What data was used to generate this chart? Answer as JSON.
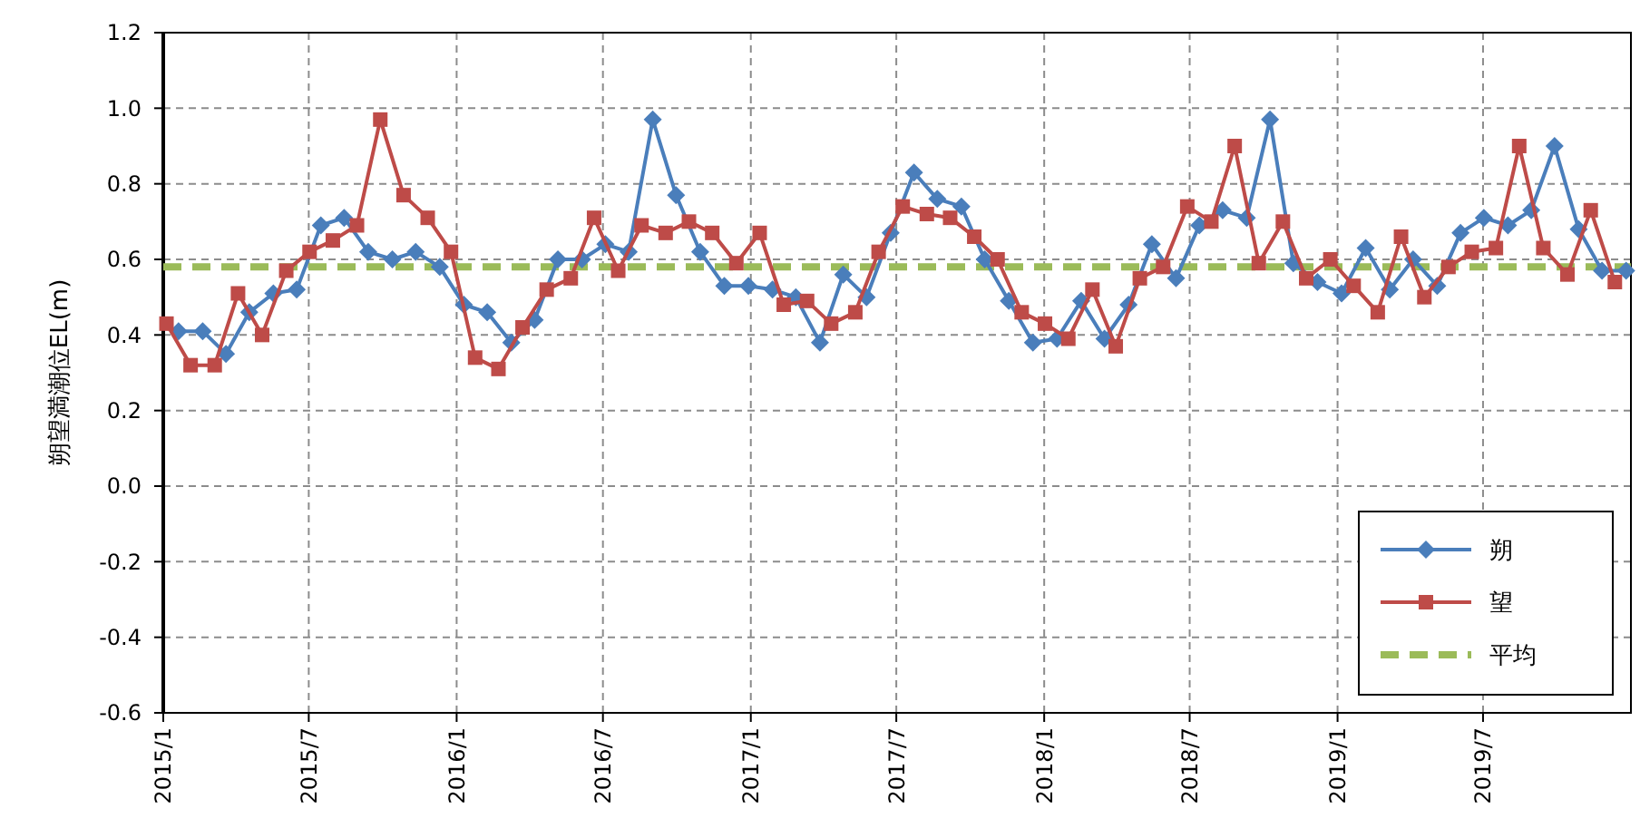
{
  "chart_data": {
    "type": "line",
    "ylabel": "朔望満潮位EL(m)",
    "xlim": [
      "2015-01-01",
      "2020-01-01"
    ],
    "xticks": [
      {
        "value": "2015-01",
        "label": "2015/1"
      },
      {
        "value": "2015-07",
        "label": "2015/7"
      },
      {
        "value": "2016-01",
        "label": "2016/1"
      },
      {
        "value": "2016-07",
        "label": "2016/7"
      },
      {
        "value": "2017-01",
        "label": "2017/1"
      },
      {
        "value": "2017-07",
        "label": "2017/7"
      },
      {
        "value": "2018-01",
        "label": "2018/1"
      },
      {
        "value": "2018-07",
        "label": "2018/7"
      },
      {
        "value": "2019-01",
        "label": "2019/1"
      },
      {
        "value": "2019-07",
        "label": "2019/7"
      }
    ],
    "ylim": [
      -0.6,
      1.2
    ],
    "yticks": [
      {
        "value": -0.6,
        "label": "-0.6"
      },
      {
        "value": -0.4,
        "label": "-0.4"
      },
      {
        "value": -0.2,
        "label": "-0.2"
      },
      {
        "value": 0,
        "label": "0.0"
      },
      {
        "value": 0.2,
        "label": "0.2"
      },
      {
        "value": 0.4,
        "label": "0.4"
      },
      {
        "value": 0.6,
        "label": "0.6"
      },
      {
        "value": 0.8,
        "label": "0.8"
      },
      {
        "value": 1,
        "label": "1.0"
      },
      {
        "value": 1.2,
        "label": "1.2"
      }
    ],
    "grid": true,
    "legend": "bottom right",
    "series": [
      {
        "name": "朔",
        "color": "#4a7ebb",
        "marker": "diamond",
        "x": [
          "2015-01-20",
          "2015-02-19",
          "2015-03-20",
          "2015-04-18",
          "2015-05-18",
          "2015-06-16",
          "2015-07-16",
          "2015-08-14",
          "2015-09-13",
          "2015-10-13",
          "2015-11-11",
          "2015-12-11",
          "2016-01-10",
          "2016-02-08",
          "2016-03-09",
          "2016-04-07",
          "2016-05-06",
          "2016-06-05",
          "2016-07-04",
          "2016-08-02",
          "2016-09-01",
          "2016-09-30",
          "2016-10-30",
          "2016-11-29",
          "2016-12-29",
          "2017-01-28",
          "2017-02-26",
          "2017-03-28",
          "2017-04-26",
          "2017-05-25",
          "2017-06-24",
          "2017-07-23",
          "2017-08-21",
          "2017-09-20",
          "2017-10-19",
          "2017-11-18",
          "2017-12-18",
          "2018-01-17",
          "2018-02-16",
          "2018-03-17",
          "2018-04-16",
          "2018-05-15",
          "2018-06-14",
          "2018-07-13",
          "2018-08-11",
          "2018-09-10",
          "2018-10-09",
          "2018-11-07",
          "2018-12-07",
          "2019-01-06",
          "2019-02-05",
          "2019-03-07",
          "2019-04-05",
          "2019-05-05",
          "2019-06-03",
          "2019-07-02",
          "2019-08-01",
          "2019-08-30",
          "2019-09-28",
          "2019-10-28",
          "2019-11-26",
          "2019-12-26"
        ],
        "values": [
          0.41,
          0.41,
          0.35,
          0.46,
          0.51,
          0.52,
          0.69,
          0.71,
          0.62,
          0.6,
          0.62,
          0.58,
          0.48,
          0.46,
          0.38,
          0.44,
          0.6,
          0.6,
          0.64,
          0.62,
          0.97,
          0.77,
          0.62,
          0.53,
          0.53,
          0.52,
          0.5,
          0.38,
          0.56,
          0.5,
          0.67,
          0.83,
          0.76,
          0.74,
          0.6,
          0.49,
          0.38,
          0.39,
          0.49,
          0.39,
          0.48,
          0.64,
          0.55,
          0.69,
          0.73,
          0.71,
          0.97,
          0.59,
          0.54,
          0.51,
          0.63,
          0.52,
          0.6,
          0.53,
          0.67,
          0.71,
          0.69,
          0.73,
          0.9,
          0.68,
          0.57,
          0.57
        ]
      },
      {
        "name": "望",
        "color": "#be4b48",
        "marker": "square",
        "x": [
          "2015-01-05",
          "2015-02-04",
          "2015-03-06",
          "2015-04-04",
          "2015-05-04",
          "2015-06-03",
          "2015-07-02",
          "2015-07-31",
          "2015-08-30",
          "2015-09-28",
          "2015-10-27",
          "2015-11-26",
          "2015-12-25",
          "2016-01-24",
          "2016-02-22",
          "2016-03-23",
          "2016-04-22",
          "2016-05-22",
          "2016-06-20",
          "2016-07-20",
          "2016-08-18",
          "2016-09-17",
          "2016-10-16",
          "2016-11-14",
          "2016-12-14",
          "2017-01-12",
          "2017-02-11",
          "2017-03-12",
          "2017-04-11",
          "2017-05-11",
          "2017-06-09",
          "2017-07-09",
          "2017-08-08",
          "2017-09-06",
          "2017-10-06",
          "2017-11-04",
          "2017-12-04",
          "2018-01-02",
          "2018-01-31",
          "2018-03-02",
          "2018-03-31",
          "2018-04-30",
          "2018-05-29",
          "2018-06-28",
          "2018-07-28",
          "2018-08-26",
          "2018-09-25",
          "2018-10-25",
          "2018-11-23",
          "2018-12-23",
          "2019-01-21",
          "2019-02-20",
          "2019-03-21",
          "2019-04-19",
          "2019-05-19",
          "2019-06-17",
          "2019-07-17",
          "2019-08-15",
          "2019-09-14",
          "2019-10-14",
          "2019-11-12",
          "2019-12-12"
        ],
        "values": [
          0.43,
          0.32,
          0.32,
          0.51,
          0.4,
          0.57,
          0.62,
          0.65,
          0.69,
          0.97,
          0.77,
          0.71,
          0.62,
          0.34,
          0.31,
          0.42,
          0.52,
          0.55,
          0.71,
          0.57,
          0.69,
          0.67,
          0.7,
          0.67,
          0.59,
          0.67,
          0.48,
          0.49,
          0.43,
          0.46,
          0.62,
          0.74,
          0.72,
          0.71,
          0.66,
          0.6,
          0.46,
          0.43,
          0.39,
          0.52,
          0.37,
          0.55,
          0.58,
          0.74,
          0.7,
          0.9,
          0.59,
          0.7,
          0.55,
          0.6,
          0.53,
          0.46,
          0.66,
          0.5,
          0.58,
          0.62,
          0.63,
          0.9,
          0.63,
          0.56,
          0.73,
          0.54
        ]
      }
    ],
    "ref_lines": [
      {
        "axis": "y",
        "value": 0.58,
        "label": "平均",
        "color": "#9bbb59",
        "line_style": "dashed"
      }
    ]
  }
}
